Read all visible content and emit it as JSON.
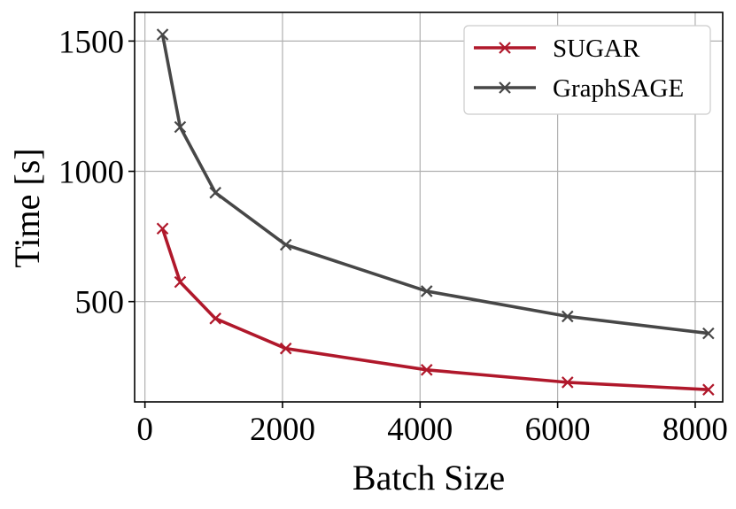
{
  "chart_data": {
    "type": "line",
    "title": "",
    "xlabel": "Batch Size",
    "ylabel": "Time [s]",
    "xlim": [
      -150,
      8400
    ],
    "ylim": [
      115,
      1610
    ],
    "xticks": [
      0,
      2000,
      4000,
      6000,
      8000
    ],
    "xtick_labels": [
      "0",
      "2000",
      "4000",
      "6000",
      "8000"
    ],
    "yticks": [
      500,
      1000,
      1500
    ],
    "ytick_labels": [
      "500",
      "1000",
      "1500"
    ],
    "grid": true,
    "legend_position": "top-right",
    "x": [
      256,
      512,
      1024,
      2048,
      4096,
      6144,
      8192
    ],
    "series": [
      {
        "name": "SUGAR",
        "color": "#b0182b",
        "marker": "x",
        "values": [
          780,
          575,
          435,
          320,
          238,
          190,
          162
        ]
      },
      {
        "name": "GraphSAGE",
        "color": "#474747",
        "marker": "x",
        "values": [
          1525,
          1170,
          918,
          718,
          540,
          443,
          378
        ]
      }
    ]
  }
}
